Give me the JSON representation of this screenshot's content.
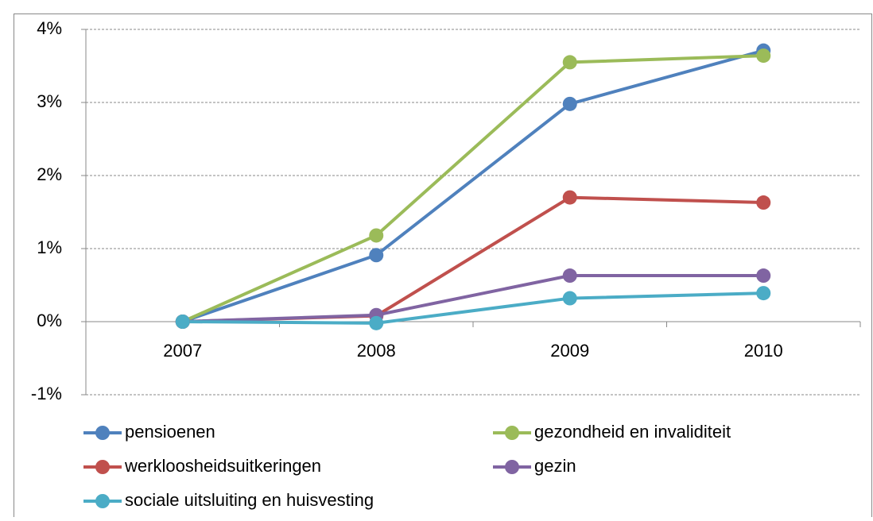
{
  "chart_data": {
    "type": "line",
    "categories": [
      "2007",
      "2008",
      "2009",
      "2010"
    ],
    "series": [
      {
        "name": "pensioenen",
        "color": "#4f81bd",
        "values": [
          0,
          0.91,
          2.98,
          3.71
        ]
      },
      {
        "name": "gezondheid en invaliditeit",
        "color": "#9bbb59",
        "values": [
          0,
          1.18,
          3.55,
          3.64
        ]
      },
      {
        "name": "werkloosheidsuitkeringen",
        "color": "#c0504d",
        "values": [
          0,
          0.08,
          1.7,
          1.63
        ]
      },
      {
        "name": "gezin",
        "color": "#8064a2",
        "values": [
          0,
          0.09,
          0.63,
          0.63
        ]
      },
      {
        "name": "sociale uitsluiting en huisvesting",
        "color": "#4bacc6",
        "values": [
          0,
          -0.02,
          0.32,
          0.39
        ]
      }
    ],
    "ylim": [
      -1,
      4
    ],
    "yticks": [
      {
        "value": -1,
        "label": "-1%"
      },
      {
        "value": 0,
        "label": "0%"
      },
      {
        "value": 1,
        "label": "1%"
      },
      {
        "value": 2,
        "label": "2%"
      },
      {
        "value": 3,
        "label": "3%"
      },
      {
        "value": 4,
        "label": "4%"
      }
    ],
    "grid": true,
    "legend": "bottom"
  }
}
